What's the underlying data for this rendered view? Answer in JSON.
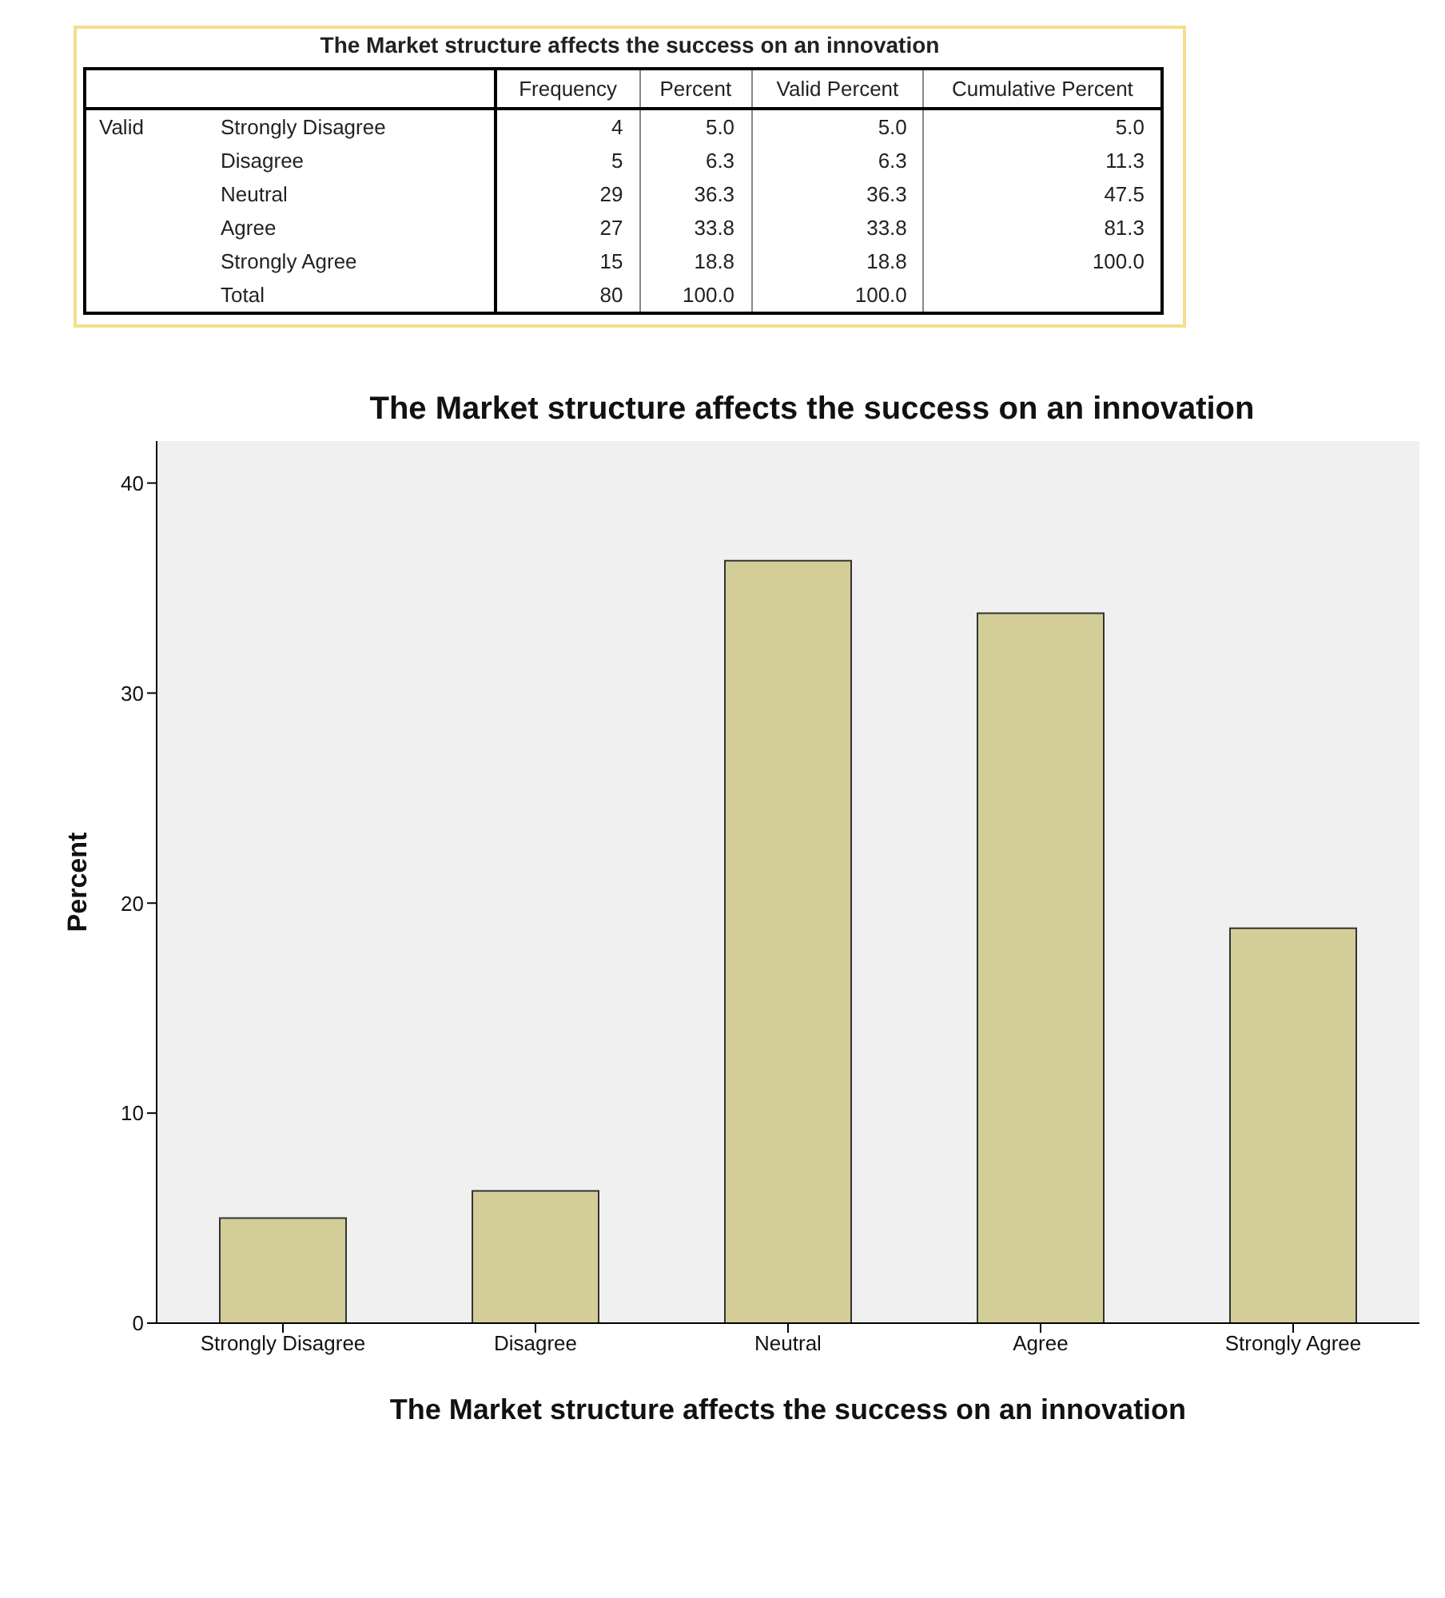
{
  "chart_data": [
    {
      "type": "other",
      "title": "The Market structure affects the success on an innovation",
      "categories": [
        "Strongly Disagree",
        "Disagree",
        "Neutral",
        "Agree",
        "Strongly Agree",
        "Total"
      ],
      "annotations": [
        "Valid"
      ],
      "series": [
        {
          "name": "Frequency",
          "values": [
            4,
            5,
            29,
            27,
            15,
            80
          ],
          "value_labels": [
            "4",
            "5",
            "29",
            "27",
            "15",
            "80"
          ]
        },
        {
          "name": "Percent",
          "values": [
            5.0,
            6.3,
            36.3,
            33.8,
            18.8,
            100.0
          ],
          "value_labels": [
            "5.0",
            "6.3",
            "36.3",
            "33.8",
            "18.8",
            "100.0"
          ]
        },
        {
          "name": "Valid Percent",
          "values": [
            5.0,
            6.3,
            36.3,
            33.8,
            18.8,
            100.0
          ],
          "value_labels": [
            "5.0",
            "6.3",
            "36.3",
            "33.8",
            "18.8",
            "100.0"
          ]
        },
        {
          "name": "Cumulative Percent",
          "values": [
            5.0,
            11.3,
            47.5,
            81.3,
            100.0,
            null
          ],
          "value_labels": [
            "5.0",
            "11.3",
            "47.5",
            "81.3",
            "100.0",
            null
          ]
        }
      ]
    },
    {
      "type": "bar",
      "title": "The Market structure affects the success on an innovation",
      "xlabel": "The Market structure affects the success on an innovation",
      "ylabel": "Percent",
      "categories": [
        "Strongly Disagree",
        "Disagree",
        "Neutral",
        "Agree",
        "Strongly Agree"
      ],
      "values": [
        5.0,
        6.3,
        36.3,
        33.8,
        18.8
      ],
      "color": "#d3ce98",
      "ylim": [
        0,
        42
      ],
      "yticks": [
        0,
        10,
        20,
        30,
        40
      ],
      "grid": false
    }
  ]
}
